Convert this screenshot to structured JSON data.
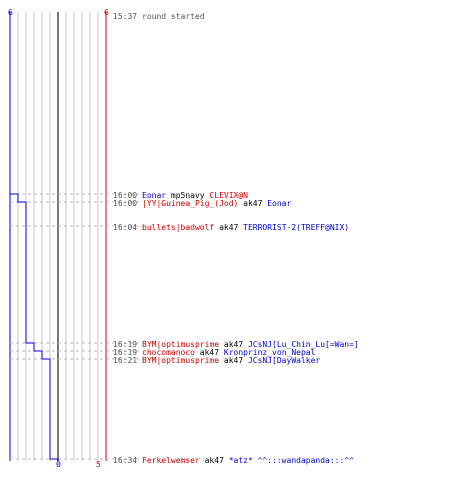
{
  "colors": {
    "blue_team": "#0000cc",
    "red_team": "#cc0000",
    "time": "#555555",
    "neutral": "#000000",
    "grid": "#c8c8c8",
    "center_line": "#777777",
    "dash": "#bbbbbb"
  },
  "scale": {
    "blue_top": "6",
    "red_top": "6",
    "blue_bottom": "0",
    "red_bottom": "5"
  },
  "events": [
    {
      "time": "15:37",
      "parts": [
        {
          "text": "round started",
          "team": "time"
        }
      ]
    },
    {
      "time": "16:00",
      "parts": [
        {
          "text": "Eonar",
          "team": "blue"
        },
        {
          "text": " mp5navy ",
          "team": "neutral"
        },
        {
          "text": "CLEVIX@N",
          "team": "red"
        }
      ]
    },
    {
      "time": "16:00",
      "parts": [
        {
          "text": "|YY|Guinea_Pig_(Jod)",
          "team": "red"
        },
        {
          "text": " ak47 ",
          "team": "neutral"
        },
        {
          "text": "Eonar",
          "team": "blue"
        }
      ]
    },
    {
      "time": "16:04",
      "parts": [
        {
          "text": "bullets|badwolf",
          "team": "red"
        },
        {
          "text": " ak47 ",
          "team": "neutral"
        },
        {
          "text": "TERRORIST-2(TREFF@NIX)",
          "team": "blue"
        }
      ]
    },
    {
      "time": "16:19",
      "parts": [
        {
          "text": "BYM|optimusprime",
          "team": "red"
        },
        {
          "text": " ak47 ",
          "team": "neutral"
        },
        {
          "text": "JCsNJ[Lu_Chin_Lu[=Wan=]",
          "team": "blue"
        }
      ]
    },
    {
      "time": "16:19",
      "parts": [
        {
          "text": "chocomanoco",
          "team": "red"
        },
        {
          "text": " ak47 ",
          "team": "neutral"
        },
        {
          "text": "Kronprinz_von_Nepal",
          "team": "blue"
        }
      ]
    },
    {
      "time": "16:21",
      "parts": [
        {
          "text": "BYM|optimusprime",
          "team": "red"
        },
        {
          "text": " ak47 ",
          "team": "neutral"
        },
        {
          "text": "JCsNJ[DayWalker",
          "team": "blue"
        }
      ]
    },
    {
      "time": "16:34",
      "parts": [
        {
          "text": "Ferkelwemser",
          "team": "red"
        },
        {
          "text": " ak47 ",
          "team": "neutral"
        },
        {
          "text": "*atz* ^^:::wandapanda:::^^",
          "team": "blue"
        }
      ]
    }
  ],
  "blue_alive": [
    6,
    5,
    4,
    4,
    3,
    2,
    1,
    0
  ],
  "red_alive": [
    6,
    5,
    5,
    5,
    5,
    5,
    5,
    5
  ]
}
